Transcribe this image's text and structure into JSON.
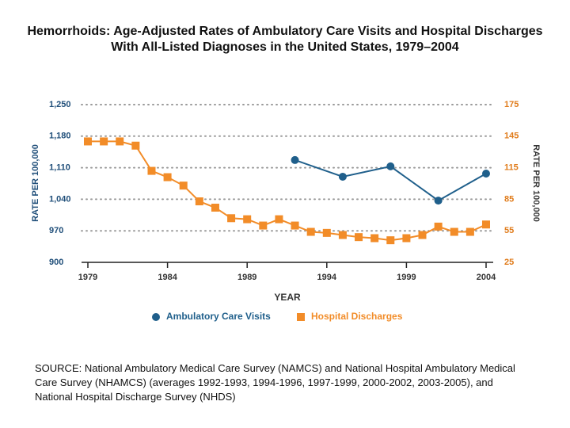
{
  "chart_data": {
    "type": "line",
    "title": "Hemorrhoids:  Age-Adjusted Rates of Ambulatory Care Visits and Hospital Discharges With All-Listed Diagnoses in the United States, 1979–2004",
    "x_label": "YEAR",
    "y_label": "RATE PER 100,000",
    "y2_label": "RATE PER 100,000",
    "xlim": [
      1979,
      2004
    ],
    "xticks": [
      1979,
      1984,
      1989,
      1994,
      1999,
      2004
    ],
    "ylim": [
      900,
      1250
    ],
    "yticks": [
      900,
      970,
      {
        "value": 1040,
        "label": "1,040"
      },
      {
        "value": 1110,
        "label": "1,110"
      },
      {
        "value": 1180,
        "label": "1,180"
      },
      {
        "value": 1250,
        "label": "1,250"
      }
    ],
    "y2lim": [
      25,
      175
    ],
    "y2ticks": [
      25,
      55,
      85,
      115,
      145,
      175
    ],
    "grid": true,
    "series": [
      {
        "name": "Ambulatory Care Visits",
        "color": "#1f5f8b",
        "marker": "circle",
        "x": [
          1992,
          1995,
          1998,
          2001,
          2004
        ],
        "values": [
          1127,
          1090,
          1113,
          1037,
          1097
        ]
      },
      {
        "name": "Hospital Discharges",
        "color": "#f28c28",
        "marker": "square",
        "axis": "y2",
        "x": [
          1979,
          1980,
          1981,
          1982,
          1983,
          1984,
          1985,
          1986,
          1987,
          1988,
          1989,
          1990,
          1991,
          1992,
          1993,
          1994,
          1995,
          1996,
          1997,
          1998,
          1999,
          2000,
          2001,
          2002,
          2003,
          2004
        ],
        "values": [
          140,
          140,
          140,
          136,
          112,
          106,
          98,
          83,
          77,
          67,
          66,
          60,
          66,
          60,
          54,
          53,
          51,
          49,
          48,
          46,
          48,
          51,
          59,
          54,
          54,
          61
        ]
      }
    ],
    "source": "SOURCE: National Ambulatory Medical Care Survey (NAMCS) and National Hospital Ambulatory Medical Care Survey (NHAMCS) (averages 1992-1993, 1994-1996, 1997-1999, 2000-2002, 2003-2005), and National Hospital Discharge Survey (NHDS)"
  }
}
